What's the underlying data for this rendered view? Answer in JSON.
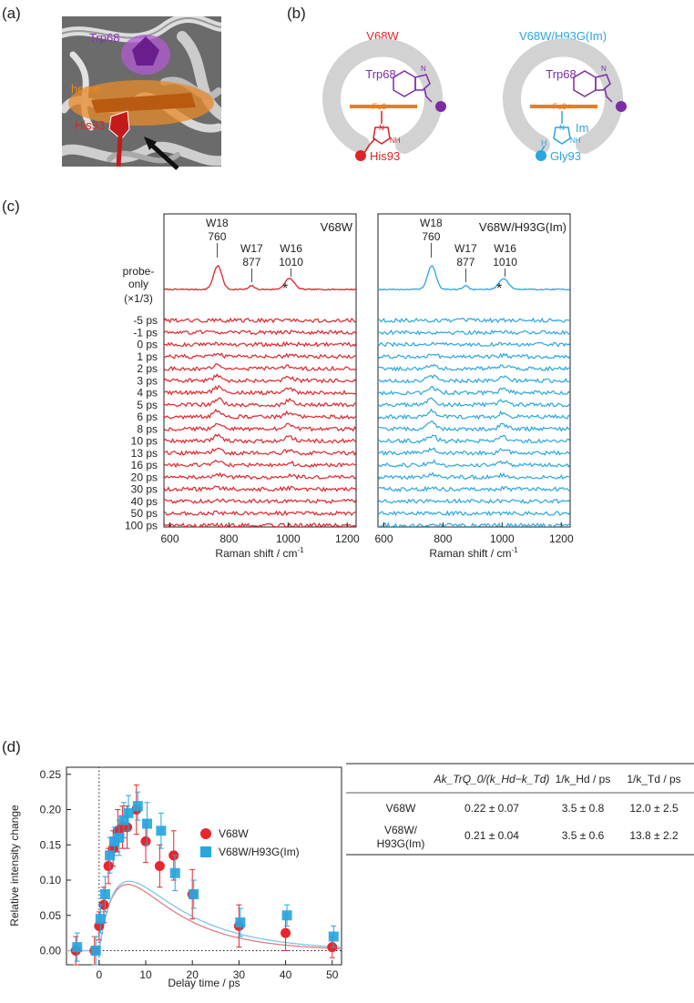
{
  "panels": {
    "a": "(a)",
    "b": "(b)",
    "c": "(c)",
    "d": "(d)"
  },
  "panel_a": {
    "trp": "Trp68",
    "heme": "heme",
    "his": "His93"
  },
  "panel_b": {
    "left": {
      "title": "V68W",
      "trp": "Trp68",
      "fe": "Fe3+",
      "ligand_n": "N",
      "ligand_nh": "NH",
      "his": "His93",
      "hn": "H",
      "ring_h": "N"
    },
    "right": {
      "title": "V68W/H93G(Im)",
      "trp": "Trp68",
      "fe": "Fe3+",
      "ligand_n": "N",
      "ligand_nh": "NH",
      "im": "Im",
      "h": "H",
      "gly": "Gly93",
      "ring_h": "N"
    }
  },
  "panel_c": {
    "left_title": "V68W",
    "right_title": "V68W/H93G(Im)",
    "probe_label": [
      "probe-",
      "only",
      "(×1/3)"
    ],
    "peaks": [
      {
        "name": "W18",
        "pos": "760",
        "x": 760
      },
      {
        "name": "W17",
        "pos": "877",
        "x": 877
      },
      {
        "name": "W16",
        "pos": "1010",
        "x": 1010
      }
    ],
    "star": "*",
    "delays": [
      "-5 ps",
      "-1 ps",
      "0 ps",
      "1 ps",
      "2 ps",
      "3 ps",
      "4 ps",
      "5 ps",
      "6 ps",
      "8 ps",
      "10 ps",
      "13 ps",
      "16 ps",
      "20 ps",
      "30 ps",
      "40 ps",
      "50 ps",
      "100 ps"
    ],
    "signal": [
      0,
      0,
      0.15,
      0.3,
      0.55,
      0.75,
      0.85,
      0.95,
      1.0,
      0.95,
      0.85,
      0.7,
      0.55,
      0.45,
      0.25,
      0.15,
      0.08,
      0
    ],
    "xticks": [
      "600",
      "800",
      "1000",
      "1200"
    ],
    "xlabel": "Raman shift / cm",
    "xlabel_sup": "-1",
    "colors": {
      "v68w": "#e0232a",
      "h93g": "#2aa6e0"
    }
  },
  "chart_data": {
    "type": "scatter",
    "title": "",
    "xlabel": "Delay time / ps",
    "ylabel": "Relative intensity change",
    "xlim": [
      -7,
      52
    ],
    "ylim": [
      -0.02,
      0.26
    ],
    "xticks": [
      0,
      10,
      20,
      30,
      40,
      50
    ],
    "yticks": [
      0.0,
      0.05,
      0.1,
      0.15,
      0.2,
      0.25
    ],
    "ytick_labels": [
      "0.00",
      "0.05",
      "0.10",
      "0.15",
      "0.20",
      "0.25"
    ],
    "legend_position": "right",
    "series": [
      {
        "name": "V68W",
        "marker": "circle",
        "color": "#e8262c",
        "x": [
          -5,
          -1,
          0,
          1,
          2,
          3,
          4,
          5,
          6,
          8,
          10,
          13,
          16,
          20,
          30,
          40,
          50
        ],
        "y": [
          0.0,
          0.0,
          0.035,
          0.065,
          0.12,
          0.145,
          0.17,
          0.175,
          0.175,
          0.2,
          0.155,
          0.12,
          0.135,
          0.08,
          0.035,
          0.025,
          0.005
        ],
        "err": [
          0.02,
          0.02,
          0.02,
          0.025,
          0.025,
          0.025,
          0.03,
          0.03,
          0.03,
          0.035,
          0.03,
          0.03,
          0.035,
          0.035,
          0.03,
          0.025,
          0.015
        ]
      },
      {
        "name": "V68W/H93G(Im)",
        "marker": "square",
        "color": "#27a6e0",
        "x": [
          -5,
          -1,
          0,
          1,
          2,
          3,
          4,
          5,
          6,
          8,
          10,
          13,
          16,
          20,
          30,
          40,
          50
        ],
        "y": [
          0.005,
          0.0,
          0.045,
          0.08,
          0.135,
          0.155,
          0.16,
          0.185,
          0.195,
          0.205,
          0.18,
          0.17,
          0.11,
          0.08,
          0.04,
          0.05,
          0.02
        ],
        "err": [
          0.02,
          0.02,
          0.02,
          0.025,
          0.025,
          0.02,
          0.025,
          0.025,
          0.025,
          0.02,
          0.03,
          0.025,
          0.025,
          0.02,
          0.02,
          0.015,
          0.015
        ]
      }
    ],
    "fits": [
      {
        "name": "V68W fit",
        "color": "#e57b80",
        "A": 0.22,
        "th": 3.5,
        "td": 12.0
      },
      {
        "name": "V68W/H93G(Im) fit",
        "color": "#7cc6ea",
        "A": 0.21,
        "th": 3.5,
        "td": 13.8
      }
    ]
  },
  "table": {
    "col_blank": "",
    "col1": "Ak_TrQ_0/(k_Hd−k_Td)",
    "col2": "1/k_Hd / ps",
    "col3": "1/k_Td / ps",
    "rows": [
      {
        "name": "V68W",
        "name2": "",
        "v1": "0.22 ± 0.07",
        "v2": "3.5 ± 0.8",
        "v3": "12.0 ± 2.5"
      },
      {
        "name": "V68W/",
        "name2": "H93G(Im)",
        "v1": "0.21 ± 0.04",
        "v2": "3.5 ± 0.6",
        "v3": "13.8 ± 2.2"
      }
    ]
  }
}
